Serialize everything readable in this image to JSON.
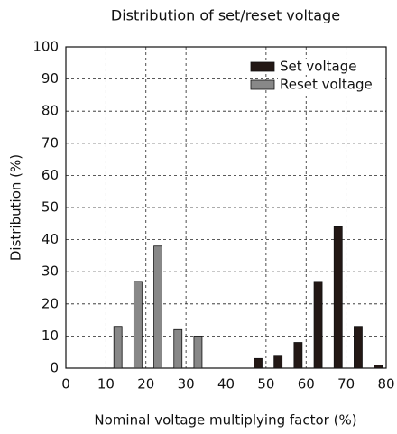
{
  "chart_data": {
    "type": "bar",
    "title": "Distribution of set/reset voltage",
    "x_label": "Nominal voltage multiplying factor (%)",
    "y_label": "Distribution (%)",
    "series": [
      {
        "name": "Set voltage",
        "color": "#231815",
        "x": [
          48,
          53,
          58,
          63,
          68,
          73,
          78
        ],
        "values": [
          3,
          4,
          8,
          27,
          44,
          13,
          1
        ]
      },
      {
        "name": "Reset voltage",
        "color": "#888888",
        "x": [
          13,
          18,
          23,
          28,
          33
        ],
        "values": [
          13,
          27,
          38,
          12,
          10
        ]
      }
    ],
    "xlim": [
      0,
      80
    ],
    "xticks": [
      0,
      10,
      20,
      30,
      40,
      50,
      60,
      70,
      80
    ],
    "ylim": [
      0,
      100
    ],
    "yticks": [
      0,
      10,
      20,
      30,
      40,
      50,
      60,
      70,
      80,
      90,
      100
    ],
    "grid": true,
    "legend": "upper right"
  }
}
